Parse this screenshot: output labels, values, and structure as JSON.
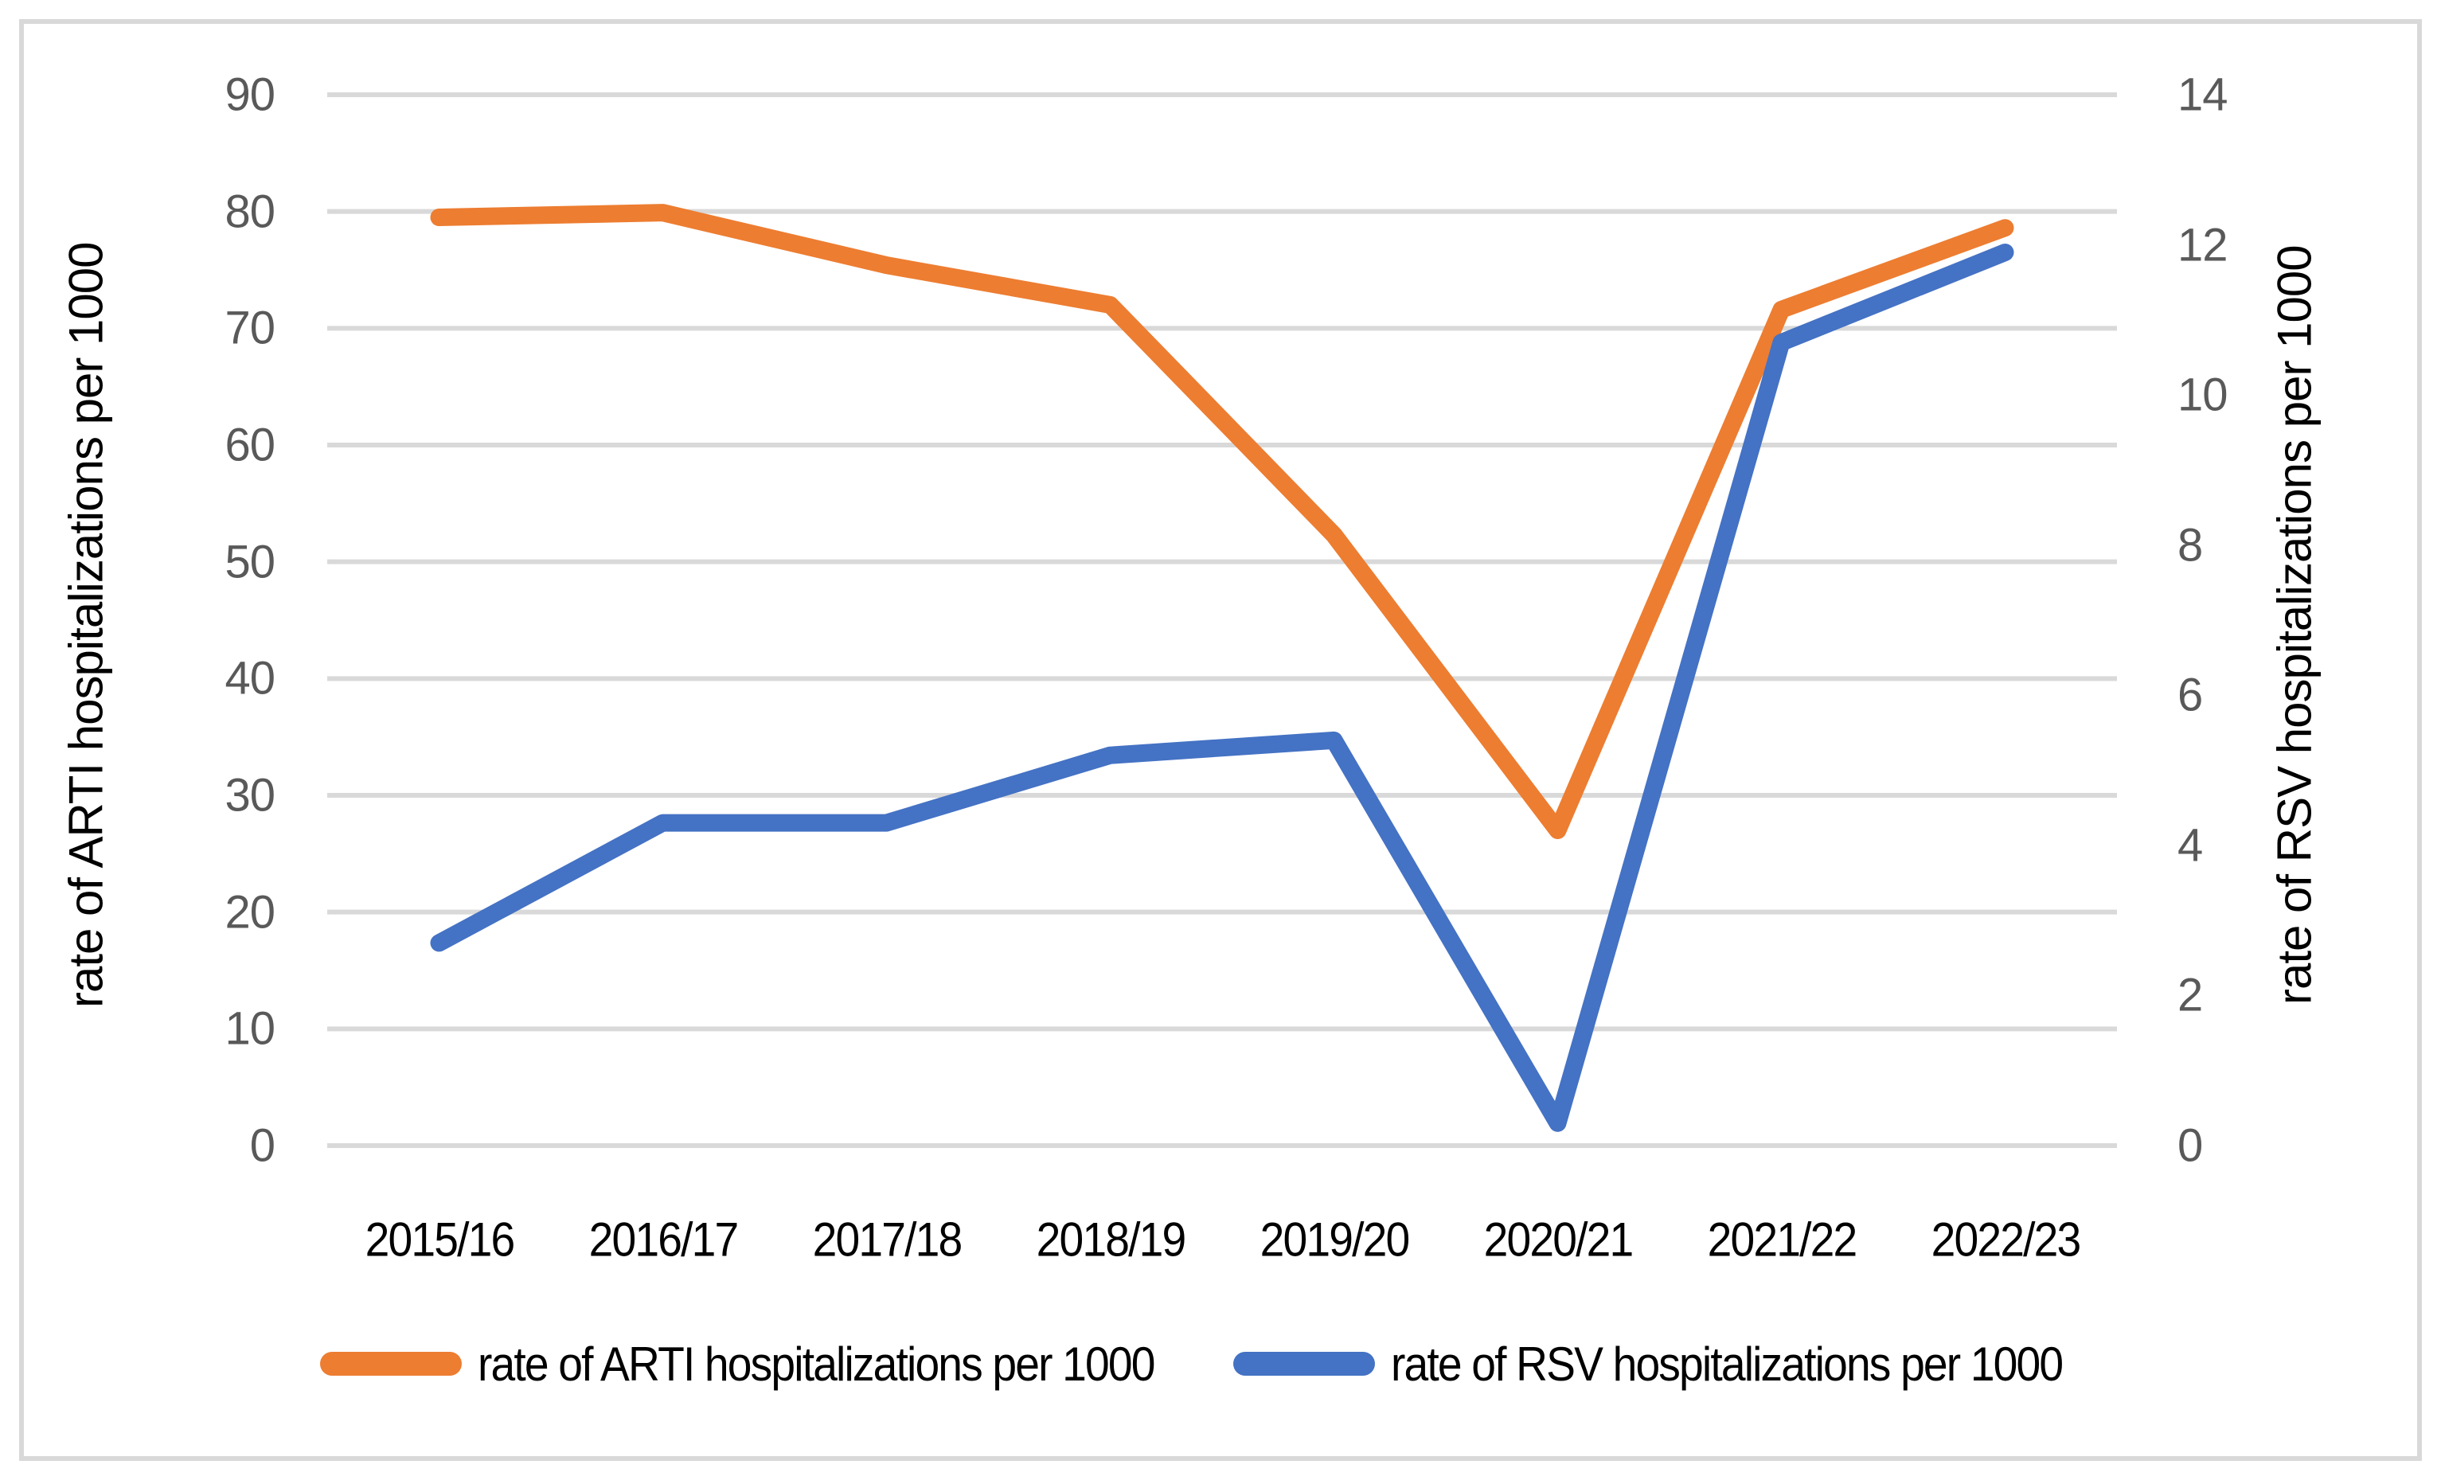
{
  "figure": {
    "background_color": "#ffffff",
    "border_color": "#d9d9d9"
  },
  "chart_data": {
    "type": "line",
    "title": "",
    "categories": [
      "2015/16",
      "2016/17",
      "2017/18",
      "2018/19",
      "2019/20",
      "2020/21",
      "2021/22",
      "2022/23"
    ],
    "series": [
      {
        "name": "rate of ARTI hospitalizations per 1000",
        "axis": "left",
        "color": "#ED7D31",
        "values": [
          79.5,
          79.9,
          75.4,
          72.0,
          52.3,
          27.0,
          71.6,
          78.6
        ]
      },
      {
        "name": "rate of RSV hospitalizations per 1000",
        "axis": "right",
        "color": "#4472C4",
        "values": [
          2.7,
          4.3,
          4.3,
          5.2,
          5.4,
          0.3,
          10.7,
          11.9
        ]
      }
    ],
    "left_axis": {
      "title": "rate of ARTI hospitalizations per 1000",
      "min": 0,
      "max": 90,
      "step": 10,
      "tick_labels": [
        "0",
        "10",
        "20",
        "30",
        "40",
        "50",
        "60",
        "70",
        "80",
        "90"
      ]
    },
    "right_axis": {
      "title": "rate of RSV hospitalizations per 1000",
      "min": 0,
      "max": 14,
      "step": 2,
      "tick_labels": [
        "0",
        "2",
        "4",
        "6",
        "8",
        "10",
        "12",
        "14"
      ]
    },
    "grid": true,
    "gridline_color": "#d9d9d9",
    "tick_text_color": "#595959",
    "label_text_color": "#000000",
    "legend": {
      "position": "bottom",
      "entries": [
        {
          "label": "rate of ARTI hospitalizations per 1000",
          "color": "#ED7D31"
        },
        {
          "label": "rate of RSV hospitalizations per 1000",
          "color": "#4472C4"
        }
      ]
    }
  }
}
